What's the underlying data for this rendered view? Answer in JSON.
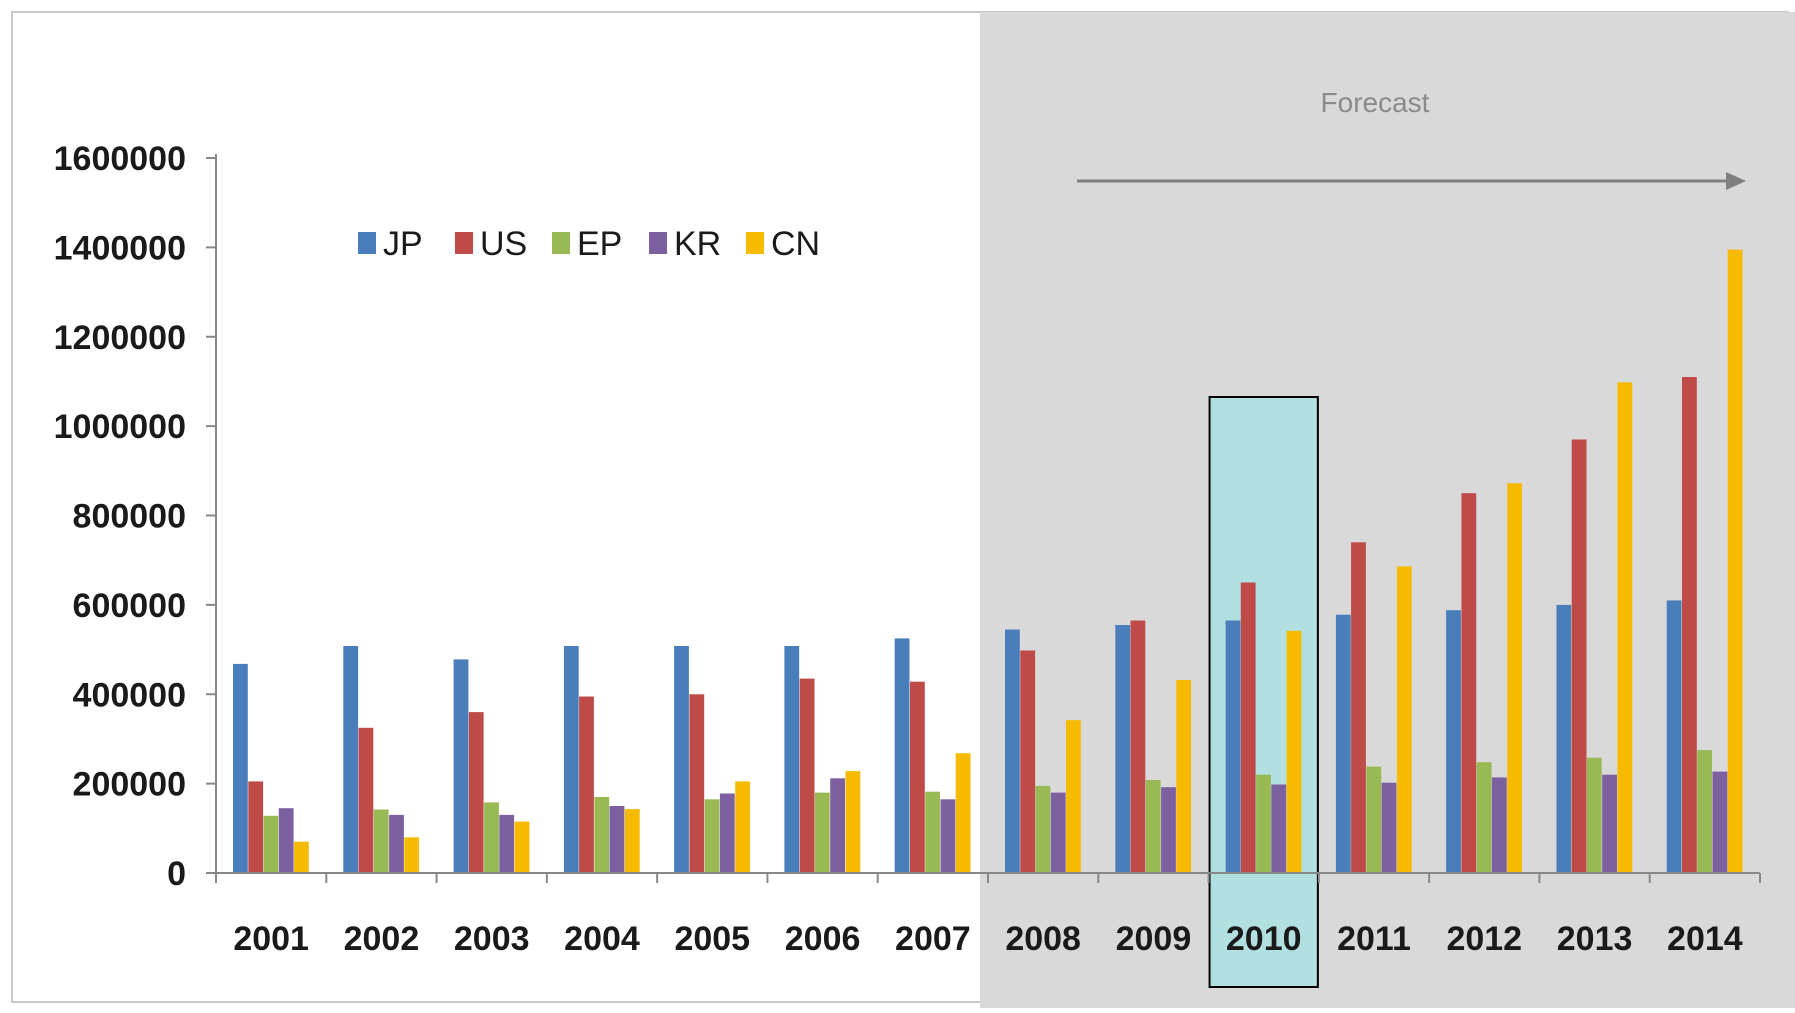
{
  "chart_data": {
    "type": "bar",
    "categories": [
      "2001",
      "2002",
      "2003",
      "2004",
      "2005",
      "2006",
      "2007",
      "2008",
      "2009",
      "2010",
      "2011",
      "2012",
      "2013",
      "2014"
    ],
    "series": [
      {
        "name": "JP",
        "color": "#4a7ebb",
        "values": [
          468000,
          508000,
          478000,
          508000,
          508000,
          508000,
          525000,
          545000,
          555000,
          565000,
          578000,
          588000,
          600000,
          610000
        ]
      },
      {
        "name": "US",
        "color": "#be4b48",
        "values": [
          205000,
          325000,
          360000,
          395000,
          400000,
          435000,
          428000,
          498000,
          565000,
          650000,
          740000,
          850000,
          970000,
          1110000
        ]
      },
      {
        "name": "EP",
        "color": "#98b954",
        "values": [
          128000,
          142000,
          158000,
          170000,
          165000,
          180000,
          182000,
          195000,
          208000,
          220000,
          238000,
          248000,
          258000,
          275000
        ]
      },
      {
        "name": "KR",
        "color": "#7d60a0",
        "values": [
          145000,
          130000,
          130000,
          150000,
          178000,
          212000,
          165000,
          180000,
          192000,
          198000,
          202000,
          214000,
          220000,
          227000
        ]
      },
      {
        "name": "CN",
        "color": "#f6bb00",
        "values": [
          70000,
          80000,
          115000,
          143000,
          205000,
          228000,
          268000,
          342000,
          432000,
          542000,
          686000,
          872000,
          1098000,
          1395000
        ]
      }
    ],
    "ylim": [
      0,
      1600000
    ],
    "yticks": [
      "0",
      "200000",
      "400000",
      "600000",
      "800000",
      "1000000",
      "1200000",
      "1400000",
      "1600000"
    ],
    "legend_position": "top-left",
    "grid": false,
    "annotation": "Forecast",
    "forecast_start": "2008",
    "highlighted_category": "2010",
    "colors": {
      "forecast_background": "#d9d9d9",
      "highlight_fill": "#b2e0e0",
      "highlight_border": "#000000",
      "axis": "#888888",
      "arrow": "#808080"
    }
  }
}
